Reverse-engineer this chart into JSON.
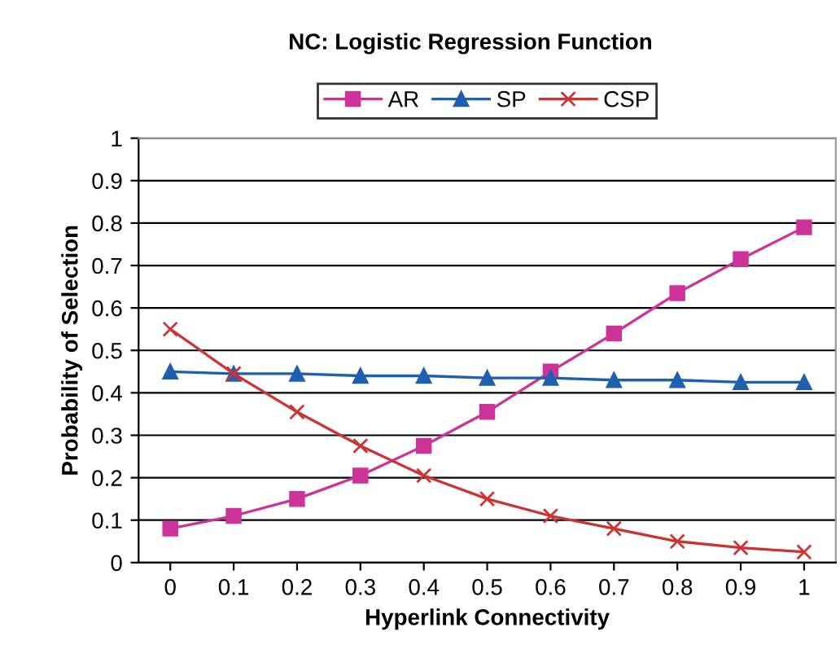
{
  "chart_data": {
    "type": "line",
    "title": "NC: Logistic Regression Function",
    "xlabel": "Hyperlink Connectivity",
    "ylabel": "Probability of Selection",
    "categories": [
      "0",
      "0.1",
      "0.2",
      "0.3",
      "0.4",
      "0.5",
      "0.6",
      "0.7",
      "0.8",
      "0.9",
      "1"
    ],
    "series": [
      {
        "name": "AR",
        "color": "#cc3399",
        "marker": "square",
        "values": [
          0.08,
          0.11,
          0.15,
          0.205,
          0.275,
          0.355,
          0.45,
          0.54,
          0.635,
          0.715,
          0.79
        ]
      },
      {
        "name": "SP",
        "color": "#1f5fb0",
        "marker": "triangle",
        "values": [
          0.45,
          0.445,
          0.445,
          0.44,
          0.44,
          0.435,
          0.435,
          0.43,
          0.43,
          0.425,
          0.425
        ]
      },
      {
        "name": "CSP",
        "color": "#cc3333",
        "marker": "cross",
        "values": [
          0.55,
          0.445,
          0.355,
          0.275,
          0.205,
          0.15,
          0.11,
          0.08,
          0.05,
          0.035,
          0.025
        ]
      }
    ],
    "ylim": [
      0,
      1
    ],
    "yticks": [
      0,
      0.1,
      0.2,
      0.3,
      0.4,
      0.5,
      0.6,
      0.7,
      0.8,
      0.9,
      1
    ],
    "grid": "y",
    "legend": "top",
    "line_style": "solid"
  }
}
